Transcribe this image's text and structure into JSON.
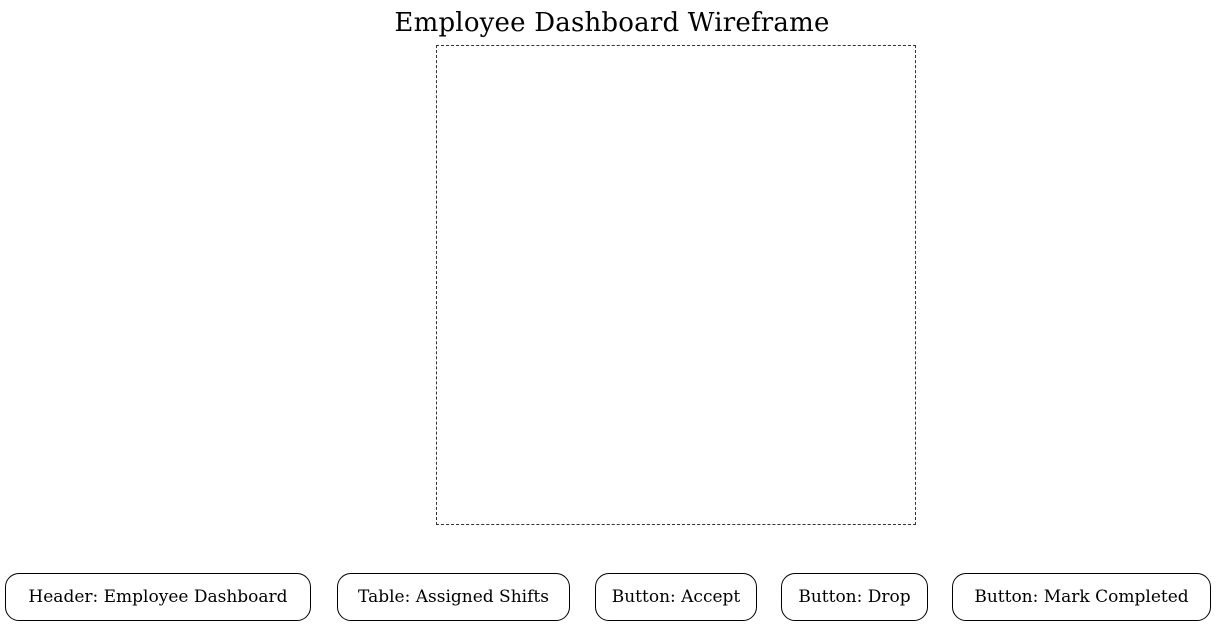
{
  "diagram": {
    "title": "Employee Dashboard Wireframe",
    "cluster": {
      "label": ""
    },
    "nodes": [
      {
        "label": "Header: Employee Dashboard"
      },
      {
        "label": "Table: Assigned Shifts"
      },
      {
        "label": "Button: Accept"
      },
      {
        "label": "Button: Drop"
      },
      {
        "label": "Button: Mark Completed"
      }
    ]
  },
  "colors": {
    "background": "#ffffff",
    "stroke": "#000000",
    "cluster_border": "#333333"
  }
}
